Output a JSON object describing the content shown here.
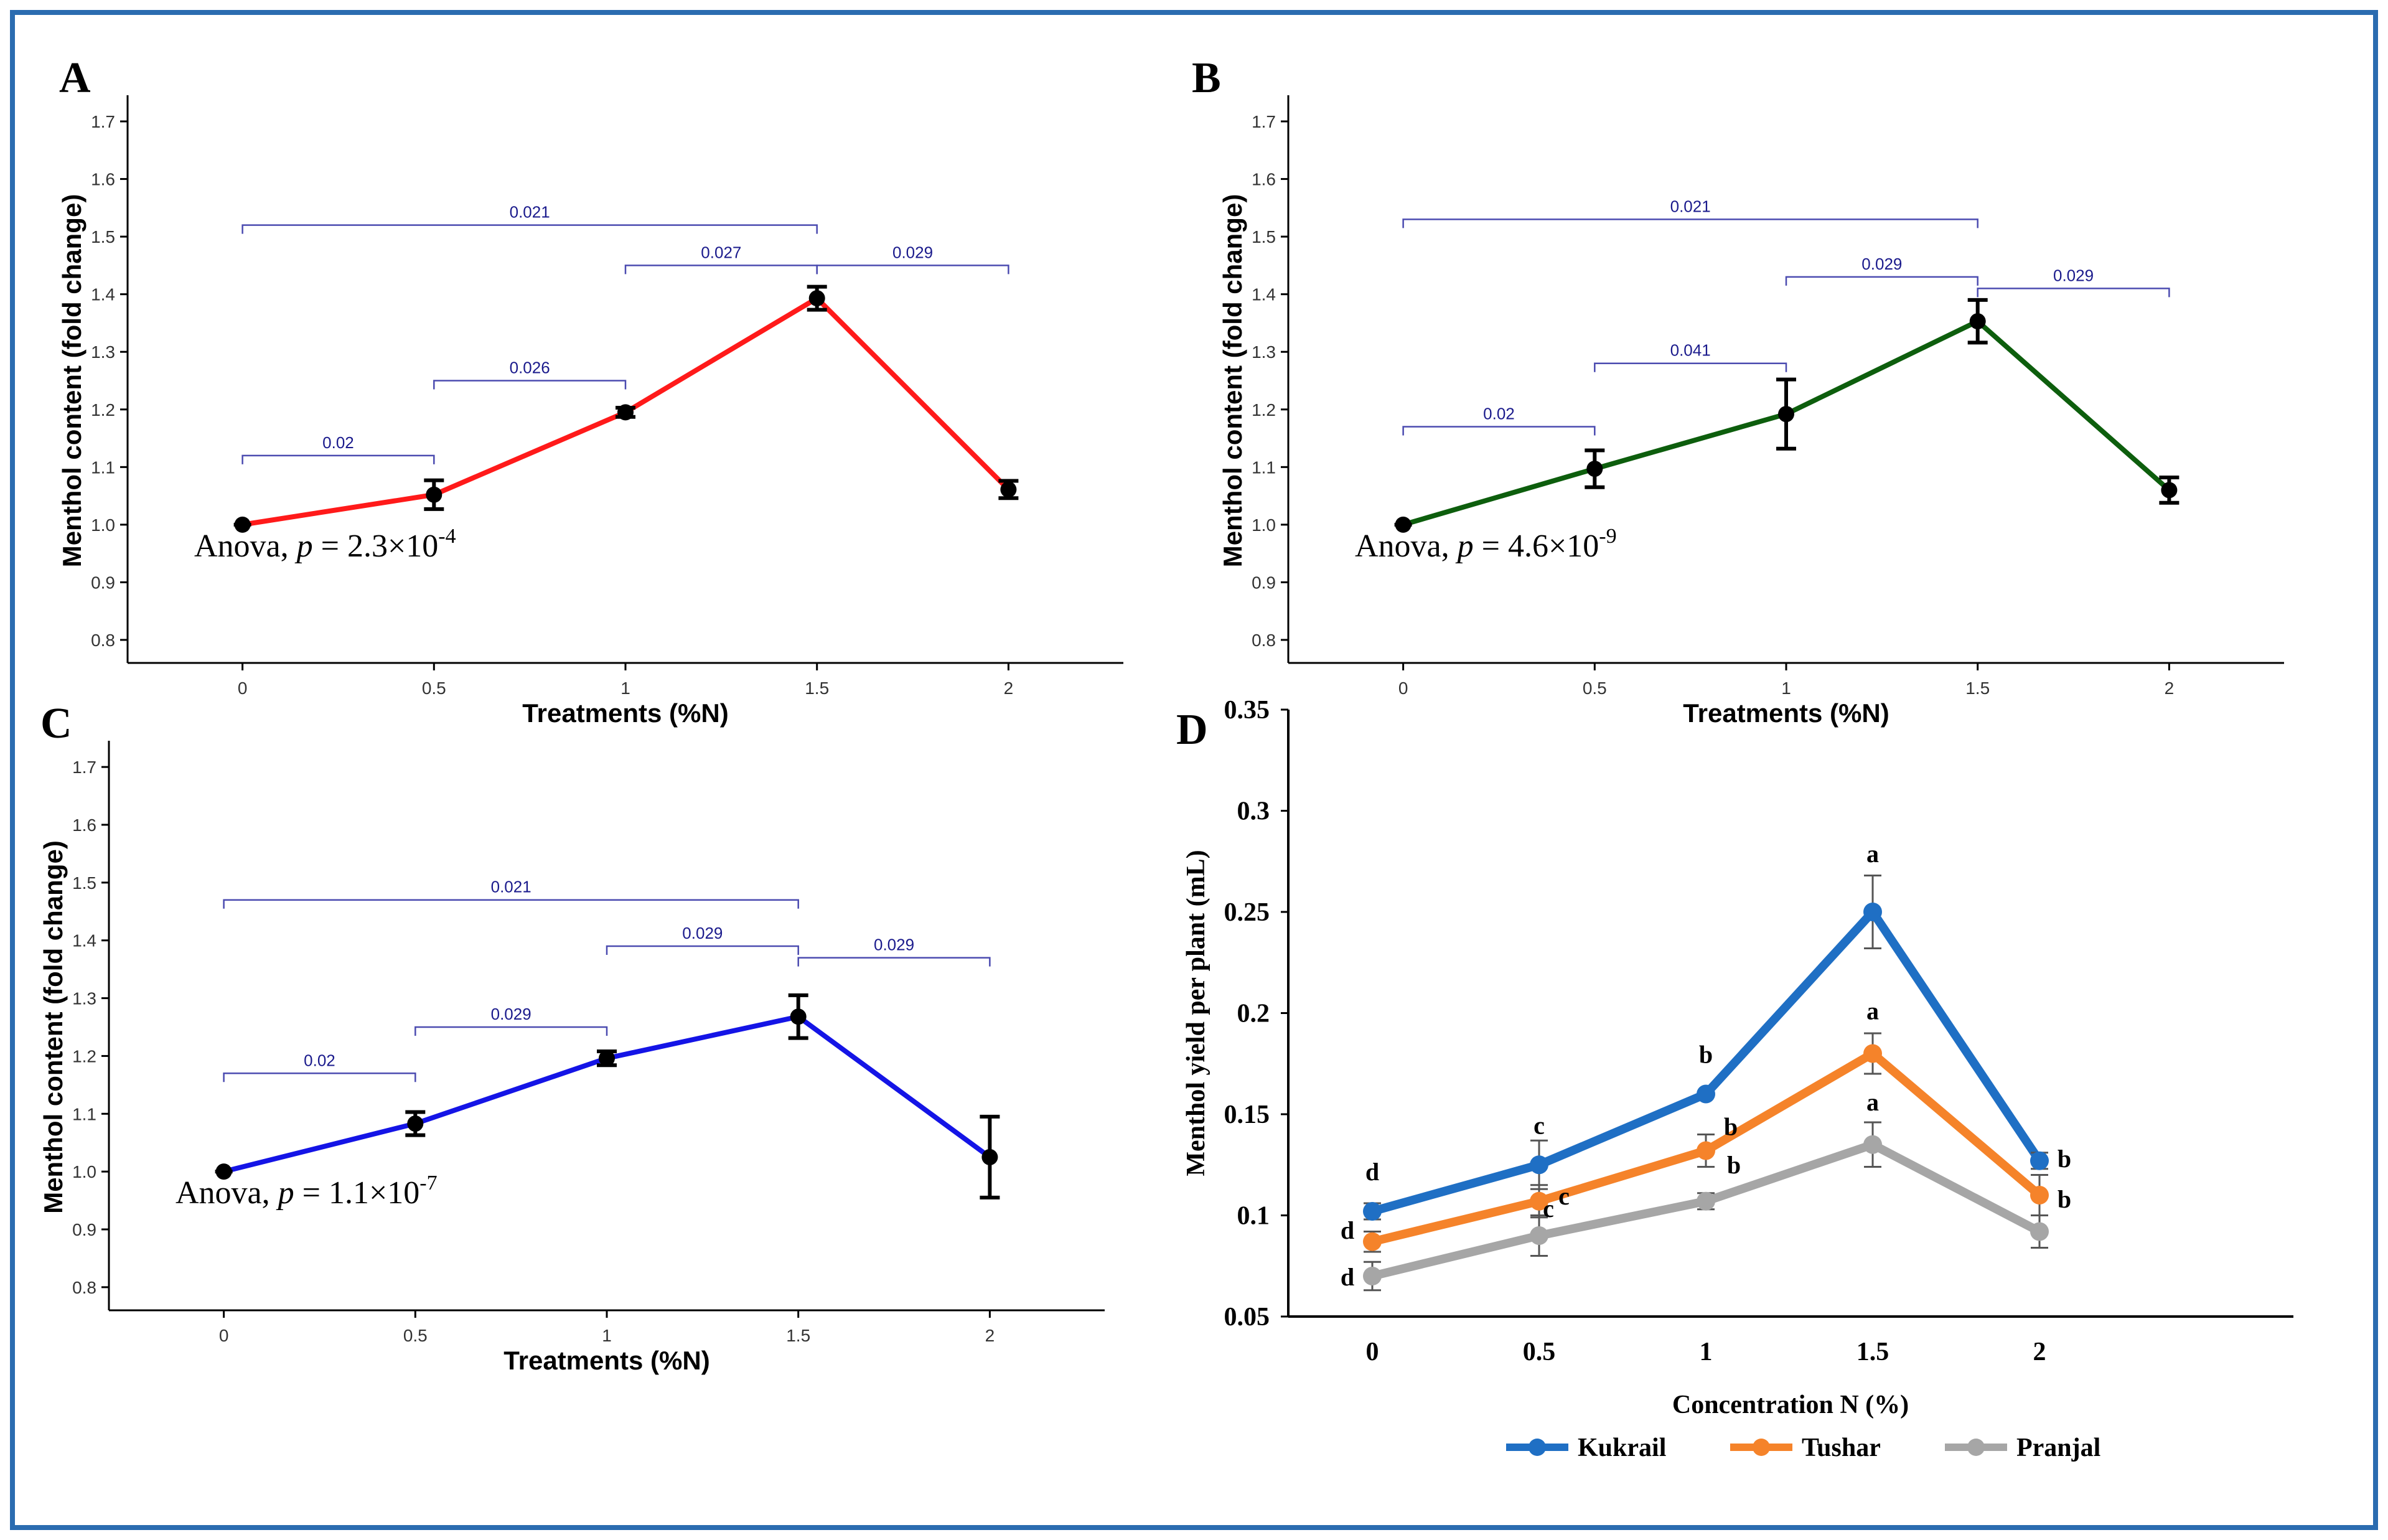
{
  "frame_color": "#2b6cb0",
  "chart_data": [
    {
      "id": "A",
      "type": "line",
      "panel_label": "A",
      "xlabel": "Treatments (%N)",
      "ylabel": "Menthol content (fold change)",
      "x_ticks": [
        "0",
        "0.5",
        "1",
        "1.5",
        "2"
      ],
      "y_ticks": [
        "0.8",
        "0.9",
        "1.0",
        "1.1",
        "1.2",
        "1.3",
        "1.4",
        "1.5",
        "1.6",
        "1.7"
      ],
      "xlim": [
        -0.3,
        2.3
      ],
      "ylim": [
        0.76,
        1.74
      ],
      "color": "#ff1a1a",
      "x": [
        0,
        0.5,
        1,
        1.5,
        2
      ],
      "values": [
        1.0,
        1.052,
        1.195,
        1.393,
        1.061
      ],
      "errors": [
        0.004,
        0.025,
        0.008,
        0.02,
        0.015
      ],
      "comparisons": [
        {
          "from": 0,
          "to": 0.5,
          "y": 1.12,
          "label": "0.02"
        },
        {
          "from": 0.5,
          "to": 1,
          "y": 1.25,
          "label": "0.026"
        },
        {
          "from": 1,
          "to": 1.5,
          "y": 1.45,
          "label": "0.027"
        },
        {
          "from": 1.5,
          "to": 2,
          "y": 1.45,
          "label": "0.029"
        },
        {
          "from": 0,
          "to": 1.5,
          "y": 1.52,
          "label": "0.021"
        }
      ],
      "anova_prefix": "Anova, ",
      "anova_p": "p",
      "anova_eq": " = 2.3×10",
      "anova_exp": "-4"
    },
    {
      "id": "B",
      "type": "line",
      "panel_label": "B",
      "xlabel": "Treatments (%N)",
      "ylabel": "Menthol content (fold change)",
      "x_ticks": [
        "0",
        "0.5",
        "1",
        "1.5",
        "2"
      ],
      "y_ticks": [
        "0.8",
        "0.9",
        "1.0",
        "1.1",
        "1.2",
        "1.3",
        "1.4",
        "1.5",
        "1.6",
        "1.7"
      ],
      "xlim": [
        -0.3,
        2.3
      ],
      "ylim": [
        0.76,
        1.74
      ],
      "color": "#0d5e0d",
      "x": [
        0,
        0.5,
        1,
        1.5,
        2
      ],
      "values": [
        1.0,
        1.097,
        1.192,
        1.353,
        1.06
      ],
      "errors": [
        0.004,
        0.032,
        0.06,
        0.037,
        0.022
      ],
      "comparisons": [
        {
          "from": 0,
          "to": 0.5,
          "y": 1.17,
          "label": "0.02"
        },
        {
          "from": 0.5,
          "to": 1,
          "y": 1.28,
          "label": "0.041"
        },
        {
          "from": 1,
          "to": 1.5,
          "y": 1.43,
          "label": "0.029"
        },
        {
          "from": 1.5,
          "to": 2,
          "y": 1.41,
          "label": "0.029"
        },
        {
          "from": 0,
          "to": 1.5,
          "y": 1.53,
          "label": "0.021"
        }
      ],
      "anova_prefix": "Anova, ",
      "anova_p": "p",
      "anova_eq": " = 4.6×10",
      "anova_exp": "-9"
    },
    {
      "id": "C",
      "type": "line",
      "panel_label": "C",
      "xlabel": "Treatments (%N)",
      "ylabel": "Menthol content (fold change)",
      "x_ticks": [
        "0",
        "0.5",
        "1",
        "1.5",
        "2"
      ],
      "y_ticks": [
        "0.8",
        "0.9",
        "1.0",
        "1.1",
        "1.2",
        "1.3",
        "1.4",
        "1.5",
        "1.6",
        "1.7"
      ],
      "xlim": [
        -0.3,
        2.3
      ],
      "ylim": [
        0.76,
        1.74
      ],
      "color": "#1414e6",
      "x": [
        0,
        0.5,
        1,
        1.5,
        2
      ],
      "values": [
        1.0,
        1.083,
        1.196,
        1.268,
        1.025
      ],
      "errors": [
        0.004,
        0.02,
        0.012,
        0.037,
        0.07
      ],
      "comparisons": [
        {
          "from": 0,
          "to": 0.5,
          "y": 1.17,
          "label": "0.02"
        },
        {
          "from": 0.5,
          "to": 1,
          "y": 1.25,
          "label": "0.029"
        },
        {
          "from": 1,
          "to": 1.5,
          "y": 1.39,
          "label": "0.029"
        },
        {
          "from": 1.5,
          "to": 2,
          "y": 1.37,
          "label": "0.029"
        },
        {
          "from": 0,
          "to": 1.5,
          "y": 1.47,
          "label": "0.021"
        }
      ],
      "anova_prefix": "Anova, ",
      "anova_p": "p",
      "anova_eq": " = 1.1×10",
      "anova_exp": "-7"
    },
    {
      "id": "D",
      "type": "line",
      "panel_label": "D",
      "xlabel": "Concentration N (%)",
      "ylabel": "Menthol yield per plant (mL)",
      "categories": [
        "0",
        "0.5",
        "1",
        "1.5",
        "2"
      ],
      "y_ticks": [
        "0.05",
        "0.1",
        "0.15",
        "0.2",
        "0.25",
        "0.3",
        "0.35"
      ],
      "ylim": [
        0.05,
        0.35
      ],
      "legend_position": "bottom",
      "series": [
        {
          "name": "Kukrail",
          "color": "#1f6fc4",
          "values": [
            0.102,
            0.125,
            0.16,
            0.25,
            0.127
          ],
          "errors": [
            0.004,
            0.012,
            0.0,
            0.018,
            0.004
          ],
          "letters": [
            "d",
            "c",
            "b",
            "a",
            "b"
          ]
        },
        {
          "name": "Tushar",
          "color": "#f5832a",
          "values": [
            0.087,
            0.107,
            0.132,
            0.18,
            0.11
          ],
          "errors": [
            0.005,
            0.008,
            0.008,
            0.01,
            0.01
          ],
          "letters": [
            "d",
            "c",
            "b",
            "a",
            "b"
          ]
        },
        {
          "name": "Pranjal",
          "color": "#a6a6a6",
          "values": [
            0.07,
            0.09,
            0.107,
            0.135,
            0.092
          ],
          "errors": [
            0.007,
            0.01,
            0.004,
            0.011,
            0.008
          ],
          "letters": [
            "d",
            "c",
            "b",
            "a",
            ""
          ]
        }
      ]
    }
  ]
}
